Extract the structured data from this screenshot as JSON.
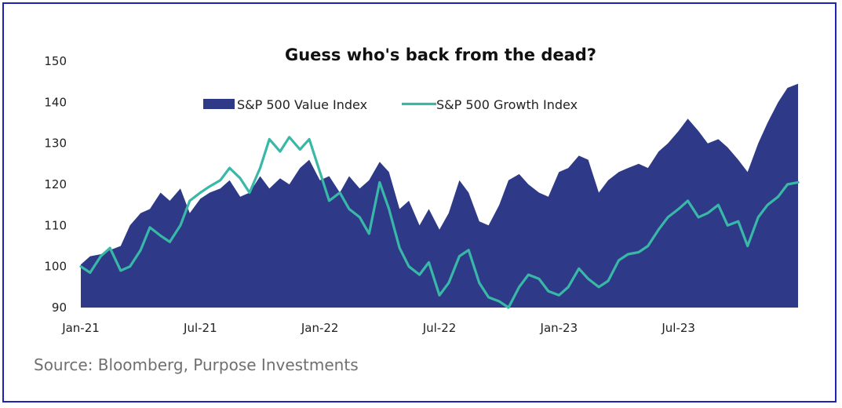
{
  "chart_data": {
    "type": "area",
    "title": "Guess who's back from the dead?",
    "source": "Source: Bloomberg, Purpose Investments",
    "ylim": [
      90,
      150
    ],
    "yticks": [
      90,
      100,
      110,
      120,
      130,
      140,
      150
    ],
    "xlim": [
      "2021-01",
      "2024-01"
    ],
    "xticks": [
      {
        "label": "Jan-21",
        "x": "2021-01"
      },
      {
        "label": "Jul-21",
        "x": "2021-07"
      },
      {
        "label": "Jan-22",
        "x": "2022-01"
      },
      {
        "label": "Jul-22",
        "x": "2022-07"
      },
      {
        "label": "Jan-23",
        "x": "2023-01"
      },
      {
        "label": "Jul-23",
        "x": "2023-07"
      }
    ],
    "legend_position": "top-center",
    "grid": false,
    "series": [
      {
        "name": "S&P 500 Value Index",
        "style": "area",
        "color": "#2e3a87",
        "points": [
          [
            "2021-01",
            100.5
          ],
          [
            "2021-01-15",
            102.5
          ],
          [
            "2021-02",
            103
          ],
          [
            "2021-02-15",
            104
          ],
          [
            "2021-03",
            105
          ],
          [
            "2021-03-15",
            110
          ],
          [
            "2021-04",
            113
          ],
          [
            "2021-04-15",
            114
          ],
          [
            "2021-05",
            118
          ],
          [
            "2021-05-15",
            116
          ],
          [
            "2021-06",
            119
          ],
          [
            "2021-06-15",
            113
          ],
          [
            "2021-07",
            116.5
          ],
          [
            "2021-07-15",
            118
          ],
          [
            "2021-08",
            119
          ],
          [
            "2021-08-15",
            121
          ],
          [
            "2021-09",
            117
          ],
          [
            "2021-09-15",
            118
          ],
          [
            "2021-10",
            122
          ],
          [
            "2021-10-15",
            119
          ],
          [
            "2021-11",
            121.5
          ],
          [
            "2021-11-15",
            120
          ],
          [
            "2021-12",
            124
          ],
          [
            "2021-12-15",
            126
          ],
          [
            "2022-01",
            121
          ],
          [
            "2022-01-15",
            122
          ],
          [
            "2022-02",
            118
          ],
          [
            "2022-02-15",
            122
          ],
          [
            "2022-03",
            119
          ],
          [
            "2022-03-15",
            121
          ],
          [
            "2022-04",
            125.5
          ],
          [
            "2022-04-15",
            123
          ],
          [
            "2022-05",
            114
          ],
          [
            "2022-05-15",
            116
          ],
          [
            "2022-06",
            110
          ],
          [
            "2022-06-15",
            114
          ],
          [
            "2022-07",
            109
          ],
          [
            "2022-07-15",
            113
          ],
          [
            "2022-08",
            121
          ],
          [
            "2022-08-15",
            118
          ],
          [
            "2022-09",
            111
          ],
          [
            "2022-09-15",
            110
          ],
          [
            "2022-10",
            115
          ],
          [
            "2022-10-15",
            121
          ],
          [
            "2022-11",
            122.5
          ],
          [
            "2022-11-15",
            120
          ],
          [
            "2022-12",
            118
          ],
          [
            "2022-12-15",
            117
          ],
          [
            "2023-01",
            123
          ],
          [
            "2023-01-15",
            124
          ],
          [
            "2023-02",
            127
          ],
          [
            "2023-02-15",
            126
          ],
          [
            "2023-03",
            118
          ],
          [
            "2023-03-15",
            121
          ],
          [
            "2023-04",
            123
          ],
          [
            "2023-04-15",
            124
          ],
          [
            "2023-05",
            125
          ],
          [
            "2023-05-15",
            124
          ],
          [
            "2023-06",
            128
          ],
          [
            "2023-06-15",
            130
          ],
          [
            "2023-07",
            133
          ],
          [
            "2023-07-15",
            136
          ],
          [
            "2023-08",
            133
          ],
          [
            "2023-08-15",
            130
          ],
          [
            "2023-09",
            131
          ],
          [
            "2023-09-15",
            129
          ],
          [
            "2023-10",
            126
          ],
          [
            "2023-10-15",
            123
          ],
          [
            "2023-11",
            130
          ],
          [
            "2023-11-15",
            135
          ],
          [
            "2023-12",
            140
          ],
          [
            "2023-12-15",
            143.5
          ],
          [
            "2024-01",
            144.5
          ]
        ]
      },
      {
        "name": "S&P 500 Growth Index",
        "style": "line",
        "color": "#39b8a8",
        "points": [
          [
            "2021-01",
            100
          ],
          [
            "2021-01-15",
            98.5
          ],
          [
            "2021-02",
            102.5
          ],
          [
            "2021-02-15",
            104.5
          ],
          [
            "2021-03",
            99
          ],
          [
            "2021-03-15",
            100
          ],
          [
            "2021-04",
            104
          ],
          [
            "2021-04-15",
            109.5
          ],
          [
            "2021-05",
            107.5
          ],
          [
            "2021-05-15",
            106
          ],
          [
            "2021-06",
            110
          ],
          [
            "2021-06-15",
            116
          ],
          [
            "2021-07",
            118
          ],
          [
            "2021-07-15",
            119.5
          ],
          [
            "2021-08",
            121
          ],
          [
            "2021-08-15",
            124
          ],
          [
            "2021-09",
            121.5
          ],
          [
            "2021-09-15",
            118
          ],
          [
            "2021-10",
            124
          ],
          [
            "2021-10-15",
            131
          ],
          [
            "2021-11",
            128
          ],
          [
            "2021-11-15",
            131.5
          ],
          [
            "2021-12",
            128.5
          ],
          [
            "2021-12-15",
            131
          ],
          [
            "2022-01",
            123
          ],
          [
            "2022-01-15",
            116
          ],
          [
            "2022-02",
            118
          ],
          [
            "2022-02-15",
            114
          ],
          [
            "2022-03",
            112
          ],
          [
            "2022-03-15",
            108
          ],
          [
            "2022-04",
            120.5
          ],
          [
            "2022-04-15",
            114
          ],
          [
            "2022-05",
            104.5
          ],
          [
            "2022-05-15",
            100
          ],
          [
            "2022-06",
            98
          ],
          [
            "2022-06-15",
            101
          ],
          [
            "2022-07",
            93
          ],
          [
            "2022-07-15",
            96
          ],
          [
            "2022-08",
            102.5
          ],
          [
            "2022-08-15",
            104
          ],
          [
            "2022-09",
            96
          ],
          [
            "2022-09-15",
            92.5
          ],
          [
            "2022-10",
            91.5
          ],
          [
            "2022-10-15",
            90
          ],
          [
            "2022-11",
            95
          ],
          [
            "2022-11-15",
            98
          ],
          [
            "2022-12",
            97
          ],
          [
            "2022-12-15",
            94
          ],
          [
            "2023-01",
            93
          ],
          [
            "2023-01-15",
            95
          ],
          [
            "2023-02",
            99.5
          ],
          [
            "2023-02-15",
            97
          ],
          [
            "2023-03",
            95
          ],
          [
            "2023-03-15",
            96.5
          ],
          [
            "2023-04",
            101.5
          ],
          [
            "2023-04-15",
            103
          ],
          [
            "2023-05",
            103.5
          ],
          [
            "2023-05-15",
            105
          ],
          [
            "2023-06",
            109
          ],
          [
            "2023-06-15",
            112
          ],
          [
            "2023-07",
            114
          ],
          [
            "2023-07-15",
            116
          ],
          [
            "2023-08",
            112
          ],
          [
            "2023-08-15",
            113
          ],
          [
            "2023-09",
            115
          ],
          [
            "2023-09-15",
            110
          ],
          [
            "2023-10",
            111
          ],
          [
            "2023-10-15",
            105
          ],
          [
            "2023-11",
            112
          ],
          [
            "2023-11-15",
            115
          ],
          [
            "2023-12",
            117
          ],
          [
            "2023-12-15",
            120
          ],
          [
            "2024-01",
            120.5
          ]
        ]
      }
    ]
  }
}
